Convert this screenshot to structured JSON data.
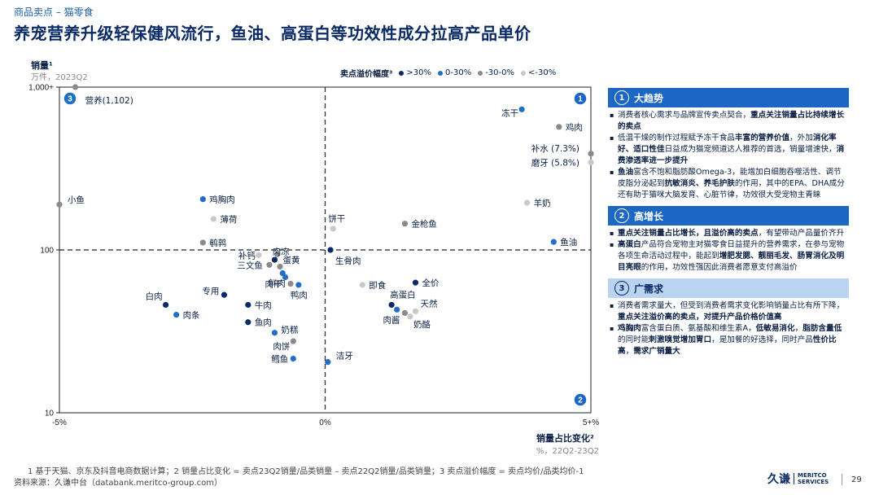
{
  "breadcrumb": "商品卖点 – 猫零食",
  "title": "养宠营养升级轻保健风流行，鱼油、高蛋白等功效性成分拉高产品单价",
  "colors": {
    "dark": "#0a2a66",
    "blue": "#1f6fc9",
    "gray": "#8a8a8a",
    "lightgray": "#c8c8c8",
    "accent": "#1c66c4"
  },
  "chart_data": {
    "type": "scatter",
    "ylabel": "销量¹",
    "yunit": "万件，2023Q2",
    "xlabel": "销量占比变化²",
    "xunit": "%，22Q2-23Q2",
    "x_ticks": [
      "-5%",
      "0%",
      "5+%"
    ],
    "y_ticks": [
      "1,000+",
      "100",
      "10"
    ],
    "xlim": [
      -5,
      5
    ],
    "ylim": [
      10,
      1000
    ],
    "y_scale": "log",
    "legend_title": "卖点溢价幅度³",
    "legend": [
      {
        "label": ">30%",
        "color": "#0a2a66"
      },
      {
        "label": "0-30%",
        "color": "#1f6fc9"
      },
      {
        "label": "-30-0%",
        "color": "#8a8a8a"
      },
      {
        "label": "<-30%",
        "color": "#c8c8c8"
      }
    ],
    "quadrants": [
      "1",
      "2",
      "3"
    ],
    "points": [
      {
        "label": "营养(1,102)",
        "x": -4.7,
        "y": 1000,
        "color": "#8a8a8a"
      },
      {
        "label": "冻干",
        "x": 3.7,
        "y": 730,
        "color": "#1f6fc9"
      },
      {
        "label": "鸡肉",
        "x": 4.4,
        "y": 570,
        "color": "#8a8a8a"
      },
      {
        "label": "补水 (7.3%)",
        "x": 5.0,
        "y": 390,
        "color": "#8a8a8a"
      },
      {
        "label": "磨牙 (5.8%)",
        "x": 5.0,
        "y": 345,
        "color": "#c8c8c8"
      },
      {
        "label": "小鱼",
        "x": -5.0,
        "y": 190,
        "color": "#8a8a8a"
      },
      {
        "label": "鸡胸肉",
        "x": -2.3,
        "y": 205,
        "color": "#1f6fc9"
      },
      {
        "label": "薄荷",
        "x": -2.1,
        "y": 155,
        "color": "#c8c8c8"
      },
      {
        "label": "饼干",
        "x": 0.15,
        "y": 135,
        "color": "#c8c8c8"
      },
      {
        "label": "羊奶",
        "x": 3.8,
        "y": 195,
        "color": "#c8c8c8"
      },
      {
        "label": "金枪鱼",
        "x": 1.5,
        "y": 145,
        "color": "#8a8a8a"
      },
      {
        "label": "鹌鹑",
        "x": -2.3,
        "y": 111,
        "color": "#8a8a8a"
      },
      {
        "label": "鱼油",
        "x": 4.3,
        "y": 112,
        "color": "#1f6fc9"
      },
      {
        "label": "补钙",
        "x": -1.25,
        "y": 93,
        "color": "#c8c8c8"
      },
      {
        "label": "肉冻",
        "x": -0.9,
        "y": 94,
        "color": "#8a8a8a"
      },
      {
        "label": "生骨肉",
        "x": 0.1,
        "y": 100,
        "color": "#0a2a66"
      },
      {
        "label": "蛋黄",
        "x": -0.95,
        "y": 87,
        "color": "#0a2a66"
      },
      {
        "label": "三文鱼",
        "x": -1.05,
        "y": 81,
        "color": "#8a8a8a"
      },
      {
        "label": "",
        "x": -0.85,
        "y": 79,
        "color": "#8a8a8a"
      },
      {
        "label": "",
        "x": -0.8,
        "y": 72,
        "color": "#1f6fc9"
      },
      {
        "label": "肉干",
        "x": -0.75,
        "y": 68,
        "color": "#1f6fc9"
      },
      {
        "label": "鲜肉",
        "x": -0.65,
        "y": 62,
        "color": "#8a8a8a"
      },
      {
        "label": "鸭肉",
        "x": -0.5,
        "y": 61,
        "color": "#1f6fc9"
      },
      {
        "label": "即食",
        "x": 0.7,
        "y": 61,
        "color": "#c8c8c8"
      },
      {
        "label": "全价",
        "x": 1.7,
        "y": 63,
        "color": "#0a2a66"
      },
      {
        "label": "白肉",
        "x": -3.0,
        "y": 46,
        "color": "#0a2a66"
      },
      {
        "label": "专用",
        "x": -1.9,
        "y": 53,
        "color": "#0a2a66"
      },
      {
        "label": "牛肉",
        "x": -1.45,
        "y": 46,
        "color": "#0a2a66"
      },
      {
        "label": "肉条",
        "x": -2.8,
        "y": 40,
        "color": "#1f6fc9"
      },
      {
        "label": "高蛋白",
        "x": 1.25,
        "y": 46,
        "color": "#0a2a66"
      },
      {
        "label": "",
        "x": 1.35,
        "y": 43,
        "color": "#1f6fc9"
      },
      {
        "label": "肉酱",
        "x": 1.5,
        "y": 41,
        "color": "#8a8a8a"
      },
      {
        "label": "天然",
        "x": 1.7,
        "y": 42,
        "color": "#c8c8c8"
      },
      {
        "label": "奶酪",
        "x": 1.6,
        "y": 39,
        "color": "#c8c8c8"
      },
      {
        "label": "鱼肉",
        "x": -1.45,
        "y": 36,
        "color": "#0a2a66"
      },
      {
        "label": "奶糕",
        "x": -0.95,
        "y": 31,
        "color": "#1f6fc9"
      },
      {
        "label": "肉饼",
        "x": -0.6,
        "y": 27.5,
        "color": "#8a8a8a"
      },
      {
        "label": "鳕鱼",
        "x": -0.6,
        "y": 21.5,
        "color": "#1f6fc9"
      },
      {
        "label": "洁牙",
        "x": 0.05,
        "y": 20.5,
        "color": "#1f6fc9"
      }
    ]
  },
  "panel": {
    "sections": [
      {
        "num": "1",
        "title": "大趋势",
        "bullets": [
          [
            {
              "t": "消费者核心需求与品牌宣传卖点契合，"
            },
            {
              "t": "重点关注销量占比持续增长的卖点",
              "b": true
            }
          ],
          [
            {
              "t": "低温干燥的制作过程赋予冻干食品"
            },
            {
              "t": "丰富的营养价值",
              "b": true
            },
            {
              "t": "，外加"
            },
            {
              "t": "消化率好、适口性佳",
              "b": true
            },
            {
              "t": "日益成为猫宠频道达人推荐的首选，销量增速快，"
            },
            {
              "t": "消费渗透率进一步提升",
              "b": true
            }
          ],
          [
            {
              "t": "鱼油",
              "b": true
            },
            {
              "t": "富含不饱和脂肪酸Omega-3，能增加白细胞吞噬活性、调节皮脂分泌起到"
            },
            {
              "t": "抗敏消炎、养毛护肤",
              "b": true
            },
            {
              "t": "的作用，其中的EPA、DHA成分还有助于猫咪大脑发育、心脏节律，功效很大受宠物主青睐"
            }
          ]
        ]
      },
      {
        "num": "2",
        "title": "高增长",
        "bullets": [
          [
            {
              "t": "重点关注销量占比增长，且溢价高的卖点",
              "b": true
            },
            {
              "t": "，有望带动产品量价齐升"
            }
          ],
          [
            {
              "t": "高蛋白",
              "b": true
            },
            {
              "t": "产品符合宠物主对猫零食日益提升的营养需求，在参与宠物各项生命活动过程中，能起到"
            },
            {
              "t": "增肥发腮、靓丽毛发、肠胃消化及明目亮眼",
              "b": true
            },
            {
              "t": "的作用，功效性强因此消费者愿意支付高溢价"
            }
          ]
        ]
      },
      {
        "num": "3",
        "title": "广需求",
        "bullets": [
          [
            {
              "t": "消费者需求量大，但受到消费者需求变化影响销量占比有所下降，"
            },
            {
              "t": "重点关注溢价高的卖点，对提升产品价格价值高",
              "b": true
            }
          ],
          [
            {
              "t": "鸡胸肉",
              "b": true
            },
            {
              "t": "富含蛋白质、氨基酸和维生素A，"
            },
            {
              "t": "低敏易消化",
              "b": true
            },
            {
              "t": "，"
            },
            {
              "t": "脂肪含量低",
              "b": true
            },
            {
              "t": "的同时能"
            },
            {
              "t": "刺激嗅觉增加胃口",
              "b": true
            },
            {
              "t": "，是加餐的好选择，同时产品"
            },
            {
              "t": "性价比高",
              "b": true
            },
            {
              "t": "，"
            },
            {
              "t": "需求广销量大",
              "b": true
            }
          ]
        ]
      }
    ]
  },
  "footnote": "1  基于天猫、京东及抖音电商数据计算；2  销量占比变化 = 卖点23Q2销量/品类销量 – 卖点22Q2销量/品类销量；3  卖点溢价幅度 = 卖点均价/品类均价-1",
  "source": "资料来源：久谦中台（databank.meritco-group.com）",
  "logo": {
    "main": "久谦",
    "sub1": "MERITCO",
    "sub2": "SERVICES"
  },
  "page_number": "29"
}
